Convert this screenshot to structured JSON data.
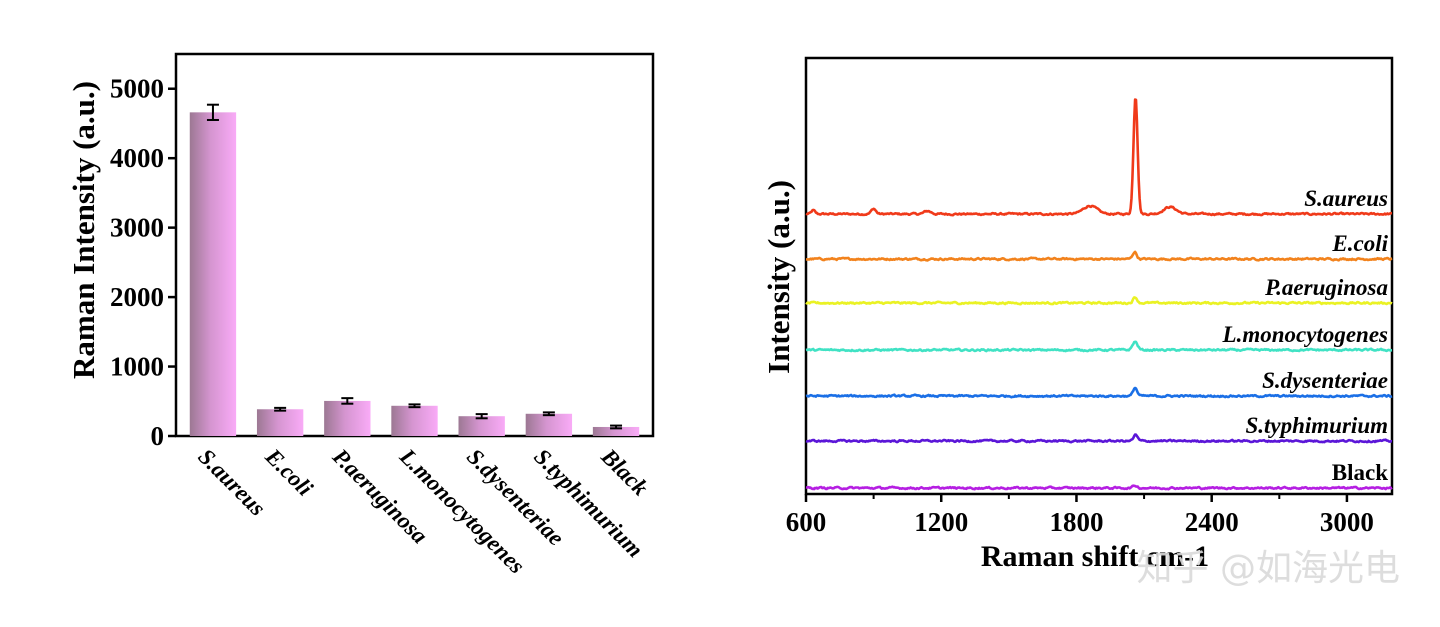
{
  "chart_data": [
    {
      "type": "bar",
      "title": "",
      "xlabel": "",
      "ylabel": "Raman Intensity (a.u.)",
      "ylim": [
        0,
        5500
      ],
      "yticks": [
        "0",
        "1000",
        "2000",
        "3000",
        "4000",
        "5000"
      ],
      "grid": false,
      "categories": [
        "S.aureus",
        "E.coli",
        "P.aeruginosa",
        "L.monocytogenes",
        "S.dysenteriae",
        "S.typhimurium",
        "Black"
      ],
      "values": [
        4660,
        385,
        505,
        435,
        285,
        320,
        130
      ],
      "errors": [
        110,
        20,
        40,
        20,
        30,
        20,
        20
      ],
      "colors": {
        "bar_dark": "#a07b97",
        "bar_light": "#f7a7f5"
      }
    },
    {
      "type": "line",
      "title": "",
      "xlabel": "Raman shift cm-1",
      "ylabel": "Intensity (a.u.)",
      "xlim": [
        600,
        3200
      ],
      "xticks": [
        "600",
        "1200",
        "1800",
        "2400",
        "3000"
      ],
      "grid": false,
      "series": [
        {
          "name": "S.aureus",
          "color": "#f03a1a",
          "baseline": 0,
          "peak": 1,
          "bumps": [
            [
              632,
              0.03,
              8
            ],
            [
              900,
              0.045,
              10
            ],
            [
              1140,
              0.025,
              15
            ],
            [
              1860,
              0.07,
              30
            ],
            [
              2062,
              1.0,
              9
            ],
            [
              2215,
              0.06,
              28
            ]
          ]
        },
        {
          "name": "E.coli",
          "color": "#f2821c",
          "baseline": 0,
          "peak": 1,
          "bumps": [
            [
              2058,
              0.06,
              9
            ]
          ]
        },
        {
          "name": "P.aeruginosa",
          "color": "#eaf224",
          "baseline": 0,
          "peak": 1,
          "bumps": [
            [
              2060,
              0.05,
              9
            ]
          ]
        },
        {
          "name": "L.monocytogenes",
          "color": "#40e2c4",
          "baseline": 0,
          "peak": 1,
          "bumps": [
            [
              2060,
              0.07,
              11
            ]
          ]
        },
        {
          "name": "S.dysenteriae",
          "color": "#1a6fe6",
          "baseline": 0,
          "peak": 1,
          "bumps": [
            [
              2060,
              0.07,
              9
            ]
          ]
        },
        {
          "name": "S.typhimurium",
          "color": "#5b16d8",
          "baseline": 0,
          "peak": 1,
          "bumps": [
            [
              2062,
              0.05,
              9
            ]
          ]
        },
        {
          "name": "Black",
          "color": "#b51fe2",
          "baseline": 0,
          "peak": 1,
          "bumps": [
            [
              2060,
              0.02,
              10
            ]
          ]
        }
      ]
    }
  ],
  "watermark": {
    "text": "知乎 @如海光电"
  }
}
